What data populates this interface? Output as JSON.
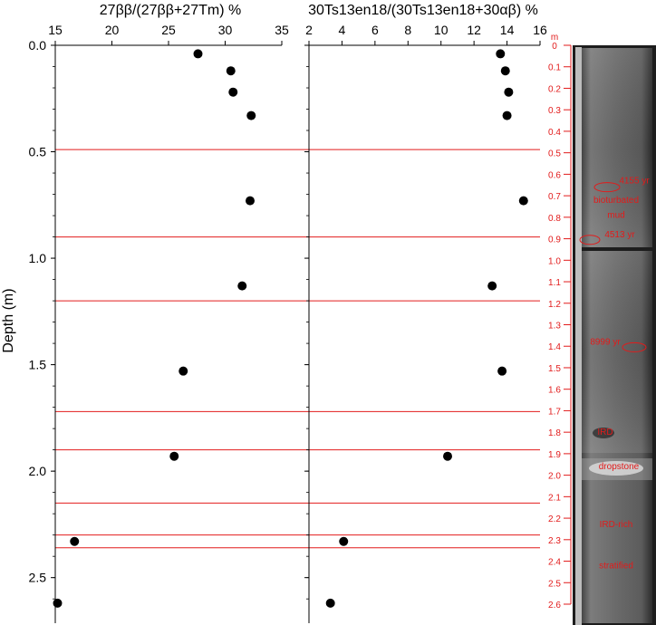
{
  "chart_data": {
    "type": "scatter",
    "shared_y": {
      "label": "Depth (m)",
      "ticks": [
        "0.0",
        "0.5",
        "1.0",
        "1.5",
        "2.0",
        "2.5"
      ],
      "tick_values": [
        0,
        0.5,
        1.0,
        1.5,
        2.0,
        2.5
      ],
      "ylim": [
        0,
        2.68
      ],
      "inverted": true
    },
    "panels": [
      {
        "title": "27ββ/(27ββ+27Tm) %",
        "xlim": [
          15,
          35
        ],
        "x_ticks": [
          "15",
          "20",
          "25",
          "30",
          "35"
        ],
        "x_tick_values": [
          15,
          20,
          25,
          30,
          35
        ],
        "points": [
          {
            "x": 27.6,
            "y": 0.04
          },
          {
            "x": 30.5,
            "y": 0.12
          },
          {
            "x": 30.7,
            "y": 0.22
          },
          {
            "x": 32.3,
            "y": 0.33
          },
          {
            "x": 32.2,
            "y": 0.73
          },
          {
            "x": 31.5,
            "y": 1.13
          },
          {
            "x": 26.3,
            "y": 1.53
          },
          {
            "x": 25.5,
            "y": 1.93
          },
          {
            "x": 16.7,
            "y": 2.33
          },
          {
            "x": 15.2,
            "y": 2.62
          }
        ]
      },
      {
        "title": "30Ts13en18/(30Ts13en18+30αβ) %",
        "xlim": [
          2,
          16
        ],
        "x_ticks": [
          "2",
          "4",
          "6",
          "8",
          "10",
          "12",
          "14",
          "16"
        ],
        "x_tick_values": [
          2,
          4,
          6,
          8,
          10,
          12,
          14,
          16
        ],
        "points": [
          {
            "x": 13.6,
            "y": 0.04
          },
          {
            "x": 13.9,
            "y": 0.12
          },
          {
            "x": 14.1,
            "y": 0.22
          },
          {
            "x": 14.0,
            "y": 0.33
          },
          {
            "x": 15.0,
            "y": 0.73
          },
          {
            "x": 13.1,
            "y": 1.13
          },
          {
            "x": 13.7,
            "y": 1.53
          },
          {
            "x": 10.4,
            "y": 1.93
          },
          {
            "x": 4.1,
            "y": 2.33
          },
          {
            "x": 3.3,
            "y": 2.62
          }
        ]
      }
    ],
    "horizontal_lines_depth": [
      0.49,
      0.9,
      1.2,
      1.72,
      1.9,
      2.15,
      2.3,
      2.36
    ],
    "core_scale": {
      "unit": "m",
      "labels": [
        "0",
        "0.1",
        "0.2",
        "0.3",
        "0.4",
        "0.5",
        "0.6",
        "0.7",
        "0.8",
        "0.9",
        "1.0",
        "1.1",
        "1.2",
        "1.3",
        "1.4",
        "1.5",
        "1.6",
        "1.7",
        "1.8",
        "1.9",
        "2.0",
        "2.1",
        "2.2",
        "2.3",
        "2.4",
        "2.5",
        "2.6"
      ],
      "values": [
        0,
        0.1,
        0.2,
        0.3,
        0.4,
        0.5,
        0.6,
        0.7,
        0.8,
        0.9,
        1.0,
        1.1,
        1.2,
        1.3,
        1.4,
        1.5,
        1.6,
        1.7,
        1.8,
        1.9,
        2.0,
        2.1,
        2.2,
        2.3,
        2.4,
        2.5,
        2.6
      ]
    },
    "core_annotations": [
      {
        "text": "4155 yr",
        "depth": 0.63
      },
      {
        "text": "bioturbated",
        "depth": 0.72
      },
      {
        "text": "mud",
        "depth": 0.79
      },
      {
        "text": "4513 yr",
        "depth": 0.88
      },
      {
        "text": "8999 yr",
        "depth": 1.38
      },
      {
        "text": "IRD",
        "depth": 1.8
      },
      {
        "text": "dropstone",
        "depth": 1.96
      },
      {
        "text": "IRD-rich",
        "depth": 2.23
      },
      {
        "text": "stratified",
        "depth": 2.42
      }
    ],
    "colors": {
      "points": "#000000",
      "lines": "#e21b1b",
      "core_text": "#e21b1b"
    },
    "grid": false
  }
}
